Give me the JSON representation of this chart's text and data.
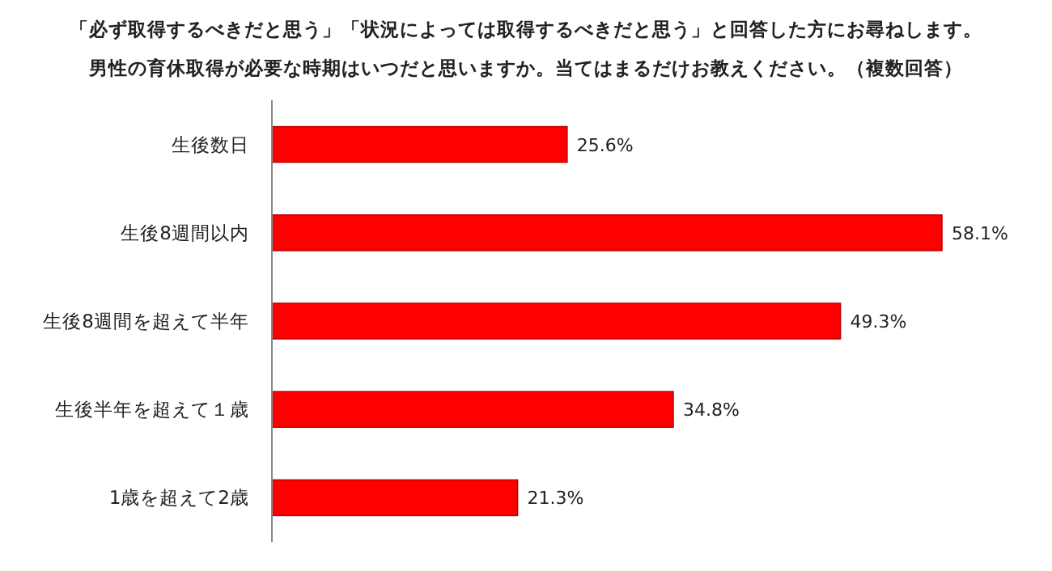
{
  "chart_data": {
    "type": "bar",
    "orientation": "horizontal",
    "title": "「必ず取得するべきだと思う」「状況によっては取得するべきだと思う」と回答した方にお尋ねします。",
    "subtitle": "男性の育休取得が必要な時期はいつだと思いますか。当てはまるだけお教えください。（複数回答）",
    "categories": [
      "生後数日",
      "生後8週間以内",
      "生後8週間を超えて半年",
      "生後半年を超えて１歳",
      "1歳を超えて2歳"
    ],
    "values": [
      25.6,
      58.1,
      49.3,
      34.8,
      21.3
    ],
    "value_labels": [
      "25.6%",
      "58.1%",
      "49.3%",
      "34.8%",
      "21.3%"
    ],
    "color": "#ff0000"
  }
}
